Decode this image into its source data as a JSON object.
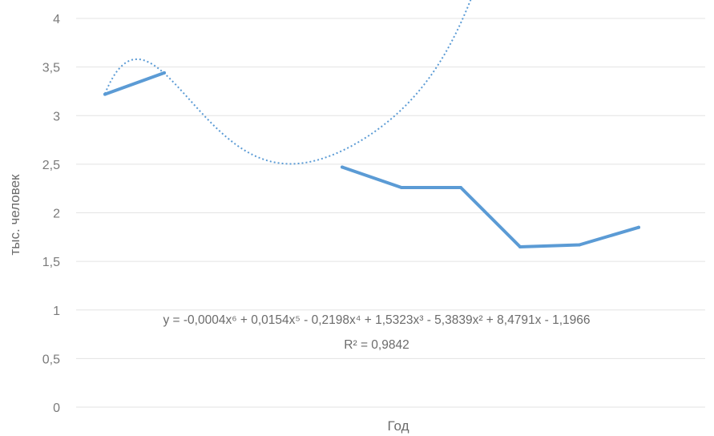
{
  "chart_data": {
    "type": "line",
    "title": "",
    "xlabel": "Год",
    "ylabel": "тыс. человек",
    "ylim": [
      0,
      4
    ],
    "ytick_labels": [
      "0",
      "0,5",
      "1",
      "1,5",
      "2",
      "2,5",
      "3",
      "3,5",
      "4"
    ],
    "yticks": [
      0,
      0.5,
      1,
      1.5,
      2,
      2.5,
      3,
      3.5,
      4
    ],
    "grid": true,
    "x": [
      1,
      2,
      3,
      4,
      5,
      6,
      7,
      8,
      9,
      10
    ],
    "series": [
      {
        "values": [
          3.22,
          3.44,
          null,
          null,
          2.47,
          2.26,
          2.26,
          1.65,
          1.67,
          1.85
        ],
        "color": "#5b9bd5"
      }
    ],
    "trendline": {
      "kind": "polynomial",
      "order": 6,
      "coefficients": [
        -1.1966,
        8.4791,
        -5.3839,
        1.5323,
        -0.2198,
        0.0154,
        -0.0004
      ],
      "x_range": [
        1,
        11
      ],
      "style": "dotted",
      "color": "#5b9bd5",
      "equation": "y = -0,0004x⁶ + 0,0154x⁵ - 0,2198x⁴ + 1,5323x³ - 5,3839x² + 8,4791x - 1,1966",
      "r2_label": "R² = 0,9842"
    }
  }
}
